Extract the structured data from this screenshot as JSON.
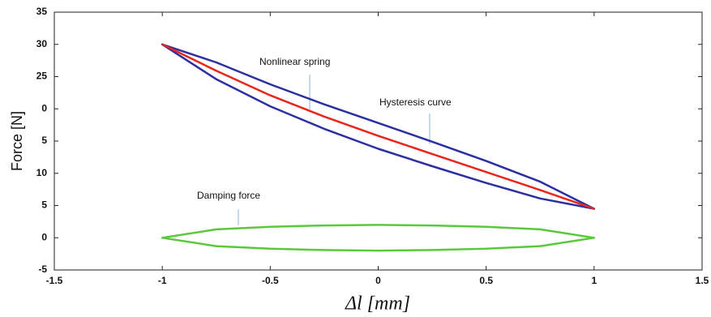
{
  "chart_data": {
    "type": "line",
    "ylabel": "Force [N]",
    "xlabel": "Δl [mm]",
    "xlim": [
      -1.5,
      1.5
    ],
    "xticks": [
      -1.5,
      -1,
      -0.5,
      0,
      0.5,
      1,
      1.5
    ],
    "ylim": [
      -5,
      35
    ],
    "yticks": [
      -5,
      0,
      5,
      {
        "value": 10,
        "label": "10"
      },
      {
        "value": 15,
        "label": "5"
      },
      {
        "value": 20,
        "label": "0"
      },
      25,
      30,
      35
    ],
    "annotations": [
      "Nonlinear spring",
      "Hysteresis curve",
      "Damping force"
    ],
    "series": [
      {
        "color": "#2b2fa0",
        "closed": true,
        "x": [
          -1,
          -0.75,
          -0.5,
          -0.25,
          0,
          0.25,
          0.5,
          0.75,
          1,
          0.75,
          0.5,
          0.25,
          0,
          -0.25,
          -0.5,
          -0.75
        ],
        "values": [
          30,
          27.2,
          23.8,
          20.7,
          17.8,
          14.9,
          11.9,
          8.7,
          4.5,
          6.1,
          8.5,
          11.1,
          13.8,
          16.9,
          20.4,
          24.6
        ]
      },
      {
        "color": "#e8261c",
        "closed": false,
        "x": [
          -1,
          -0.75,
          -0.5,
          -0.25,
          0,
          0.25,
          0.5,
          0.75,
          1
        ],
        "values": [
          30,
          25.9,
          22.1,
          18.8,
          15.8,
          13.0,
          10.2,
          7.4,
          4.5
        ]
      },
      {
        "color": "#5ac83c",
        "closed": true,
        "x": [
          -1,
          -0.75,
          -0.5,
          -0.25,
          0,
          0.25,
          0.5,
          0.75,
          1,
          0.75,
          0.5,
          0.25,
          0,
          -0.25,
          -0.5,
          -0.75
        ],
        "values": [
          0,
          1.3,
          1.7,
          1.9,
          2,
          1.9,
          1.7,
          1.3,
          0,
          -1.3,
          -1.7,
          -1.9,
          -2,
          -1.9,
          -1.7,
          -1.3
        ]
      }
    ]
  }
}
